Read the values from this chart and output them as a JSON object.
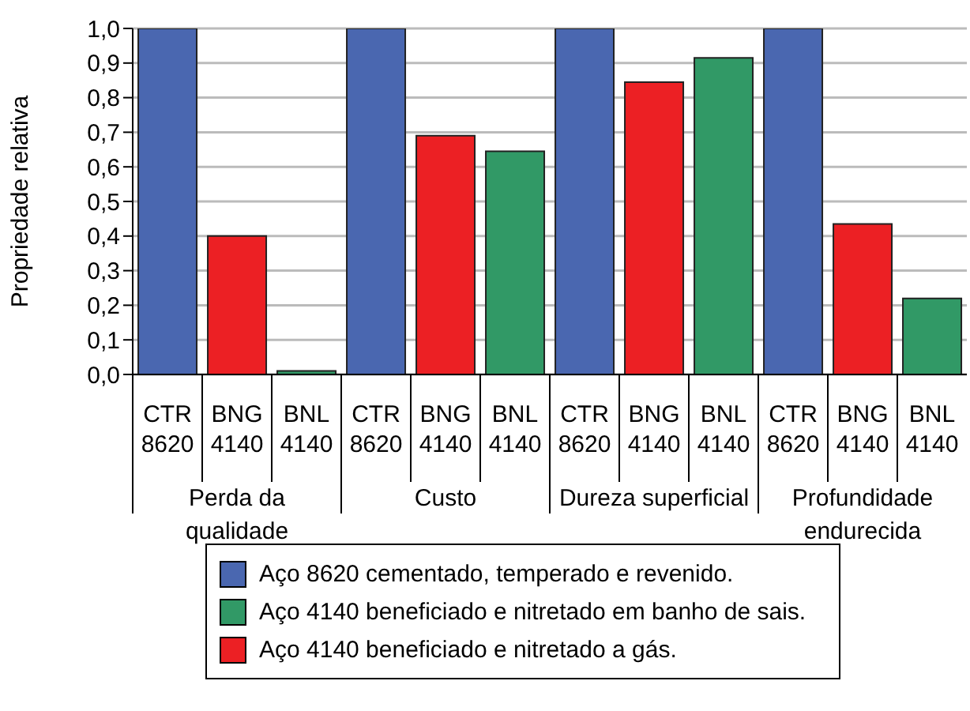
{
  "chart_data": {
    "type": "bar",
    "ylabel": "Propriedade relativa",
    "categories": [
      "CTR 8620",
      "BNG 4140",
      "BNL 4140",
      "CTR 8620",
      "BNG 4140",
      "BNL 4140",
      "CTR 8620",
      "BNG 4140",
      "BNL 4140",
      "CTR 8620",
      "BNG 4140",
      "BNL 4140"
    ],
    "series": [
      {
        "name": "Aço 8620 cementado, temperado e revenido.",
        "color": "#4a67b0",
        "values": [
          1.0,
          null,
          null,
          1.0,
          null,
          null,
          1.0,
          null,
          null,
          1.0,
          null,
          null
        ]
      },
      {
        "name": "Aço 4140 beneficiado e nitretado em banho de sais.",
        "color": "#319966",
        "values": [
          null,
          null,
          0.01,
          null,
          null,
          0.645,
          null,
          null,
          0.915,
          null,
          null,
          0.22
        ]
      },
      {
        "name": "Aço 4140 beneficiado e nitretado a gás.",
        "color": "#ec2024",
        "values": [
          null,
          0.4,
          null,
          null,
          0.69,
          null,
          null,
          0.845,
          null,
          null,
          0.435,
          null
        ]
      }
    ],
    "annotations": [
      "Perda da qualidade",
      "Custo",
      "Dureza superficial",
      "Profundidade endurecida"
    ],
    "ylim": [
      0,
      1
    ],
    "yticks": [
      {
        "value": 0,
        "label": "0,0"
      },
      {
        "value": 0.1,
        "label": "0,1"
      },
      {
        "value": 0.2,
        "label": "0,2"
      },
      {
        "value": 0.3,
        "label": "0,3"
      },
      {
        "value": 0.4,
        "label": "0,4"
      },
      {
        "value": 0.5,
        "label": "0,5"
      },
      {
        "value": 0.6,
        "label": "0,6"
      },
      {
        "value": 0.7,
        "label": "0,7"
      },
      {
        "value": 0.8,
        "label": "0,8"
      },
      {
        "value": 0.9,
        "label": "0,9"
      },
      {
        "value": 1,
        "label": "1,0"
      }
    ],
    "grid": "y",
    "legend": "bottom"
  }
}
